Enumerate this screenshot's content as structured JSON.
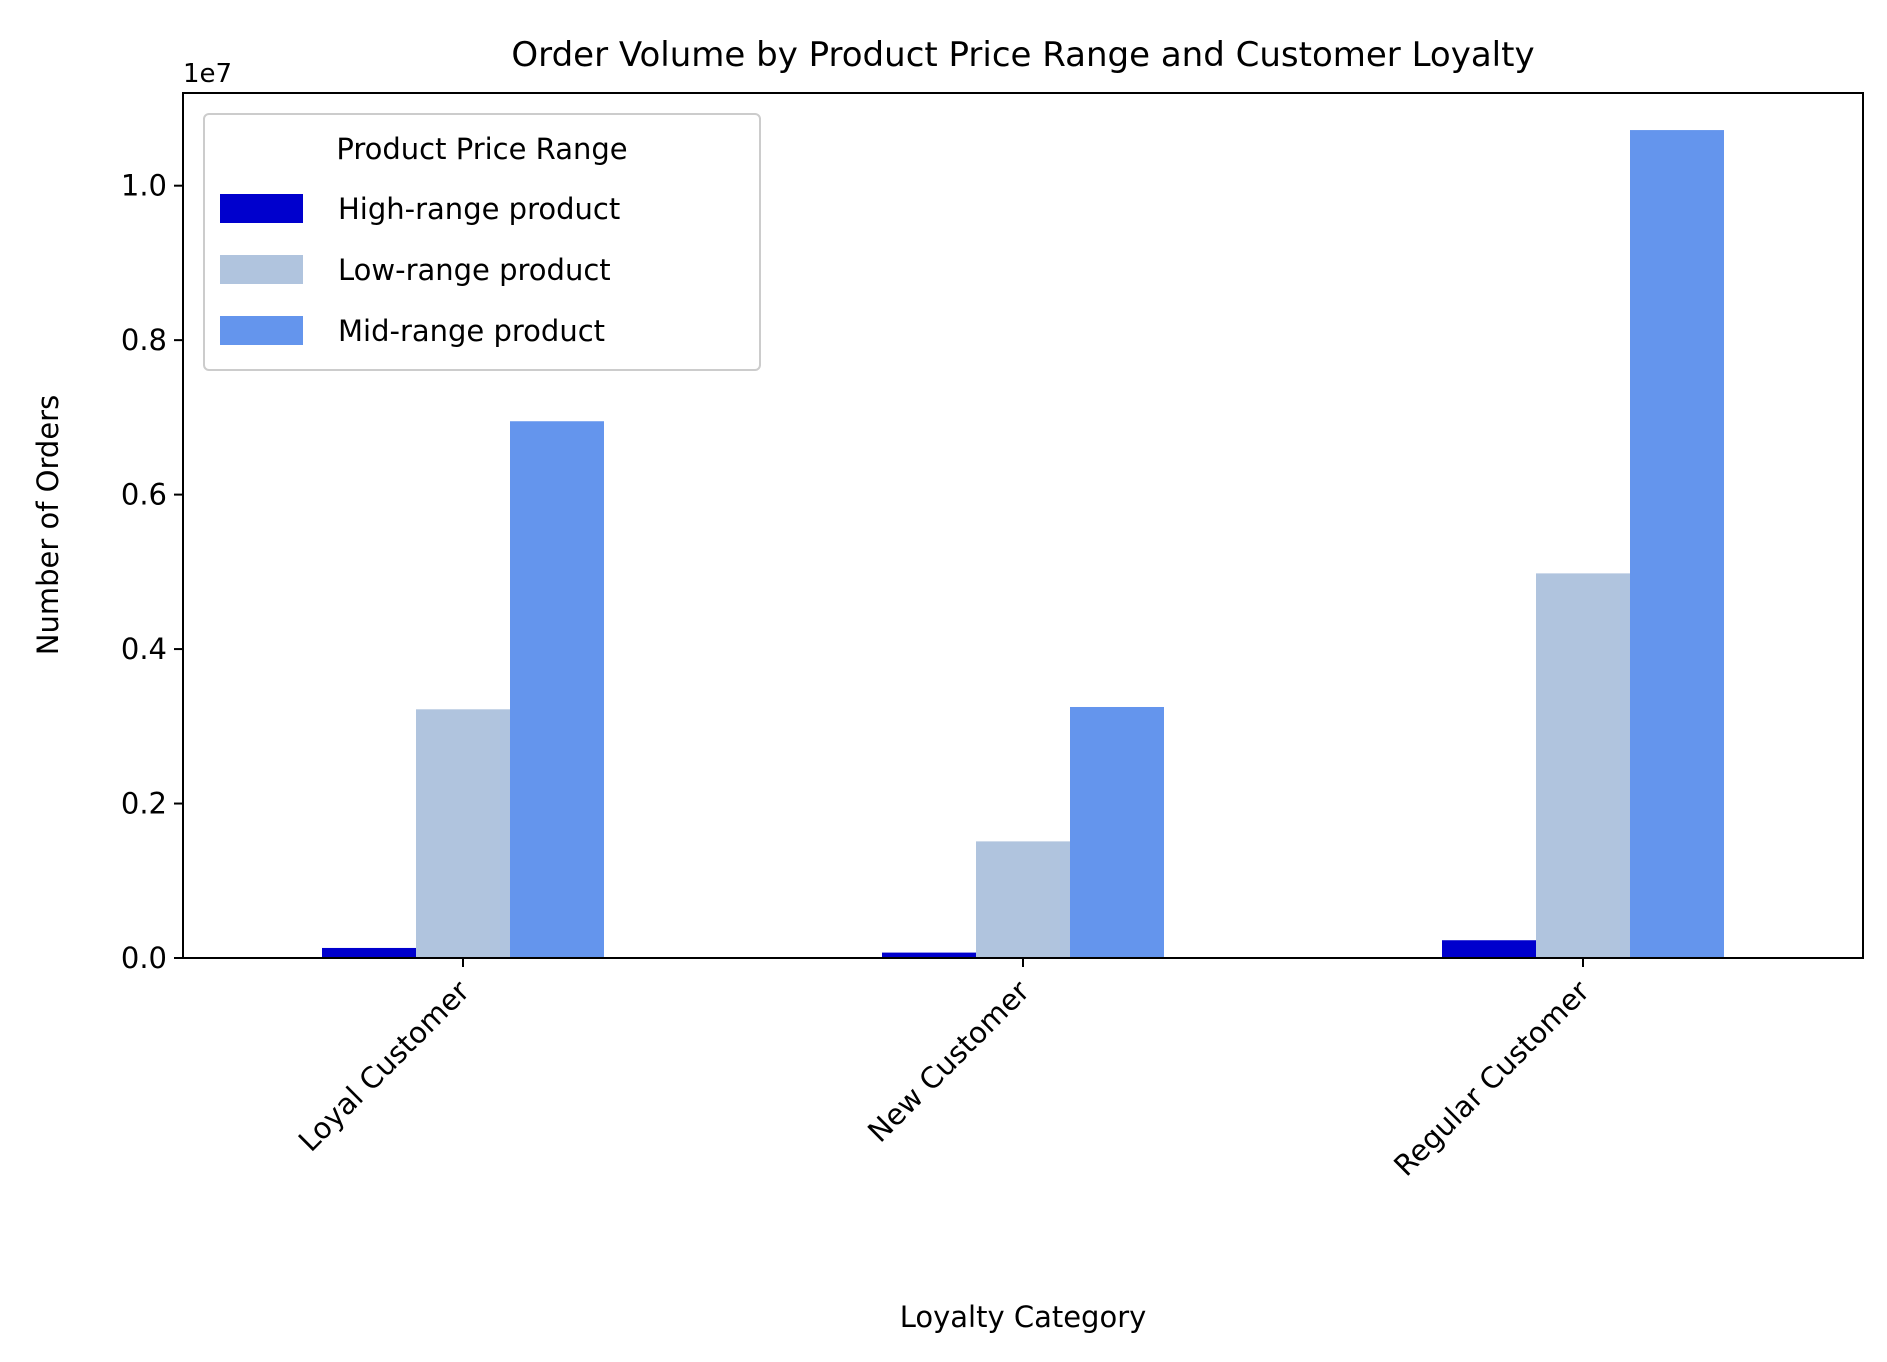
{
  "chart_data": {
    "type": "bar",
    "title": "Order Volume by Product Price Range and Customer Loyalty",
    "xlabel": "Loyalty Category",
    "ylabel": "Number of Orders",
    "y_offset_label": "1e7",
    "y_scale": 10000000,
    "ylim": [
      0,
      11200000
    ],
    "yticks": [
      0,
      2000000,
      4000000,
      6000000,
      8000000,
      10000000
    ],
    "ytick_labels": [
      "0.0",
      "0.2",
      "0.4",
      "0.6",
      "0.8",
      "1.0"
    ],
    "categories": [
      "Loyal Customer",
      "New Customer",
      "Regular Customer"
    ],
    "legend_title": "Product Price Range",
    "legend_position": "upper-left",
    "grid": false,
    "series": [
      {
        "name": "High-range product",
        "color": "#0000cd",
        "values": [
          130000,
          70000,
          230000
        ]
      },
      {
        "name": "Low-range product",
        "color": "#b0c4de",
        "values": [
          3220000,
          1510000,
          4980000
        ]
      },
      {
        "name": "Mid-range product",
        "color": "#6495ed",
        "values": [
          6950000,
          3250000,
          10720000
        ]
      }
    ]
  }
}
